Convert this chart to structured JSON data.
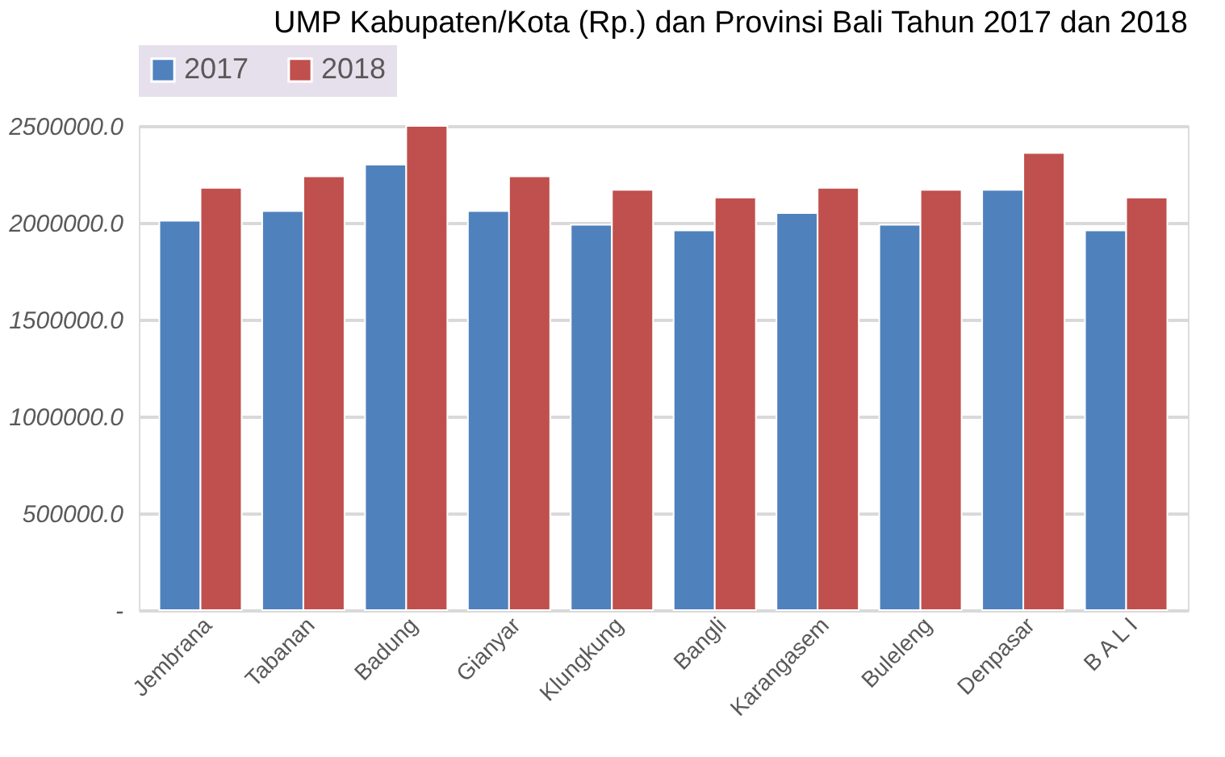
{
  "chart_data": {
    "type": "bar",
    "title": "UMP Kabupaten/Kota (Rp.) dan Provinsi Bali Tahun 2017 dan 2018",
    "categories": [
      "Jembrana",
      "Tabanan",
      "Badung",
      "Gianyar",
      "Klungkung",
      "Bangli",
      "Karangasem",
      "Buleleng",
      "Denpasar",
      "B A L I"
    ],
    "series": [
      {
        "name": "2017",
        "color": "#4f81bd",
        "values": [
          2010000,
          2060000,
          2300000,
          2060000,
          1990000,
          1960000,
          2050000,
          1990000,
          2170000,
          1960000
        ]
      },
      {
        "name": "2018",
        "color": "#c0504d",
        "values": [
          2180000,
          2240000,
          2500000,
          2240000,
          2170000,
          2130000,
          2180000,
          2170000,
          2360000,
          2130000
        ]
      }
    ],
    "ylim": [
      0,
      2500000
    ],
    "yticks": [
      {
        "value": 0,
        "label": "-"
      },
      {
        "value": 500000,
        "label": "500000.0"
      },
      {
        "value": 1000000,
        "label": "1000000.0"
      },
      {
        "value": 1500000,
        "label": "1500000.0"
      },
      {
        "value": 2000000,
        "label": "2000000.0"
      },
      {
        "value": 2500000,
        "label": "2500000.0"
      }
    ],
    "grid": "y",
    "legend": "top"
  }
}
